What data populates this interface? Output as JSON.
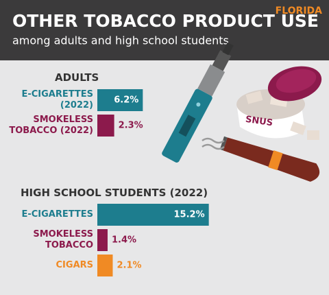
{
  "header": {
    "title": "OTHER TOBACCO PRODUCT USE",
    "subtitle": "among adults and high school students",
    "state": "FLORIDA"
  },
  "illustration": {
    "tin_label": "SNUS"
  },
  "chart_data": [
    {
      "type": "bar",
      "orientation": "horizontal",
      "title": "ADULTS",
      "categories": [
        "E-CIGARETTES (2022)",
        "SMOKELESS TOBACCO (2022)"
      ],
      "values": [
        6.2,
        2.3
      ],
      "value_labels": [
        "6.2%",
        "2.3%"
      ],
      "colors": [
        "#1d7d8e",
        "#8c1a4c"
      ]
    },
    {
      "type": "bar",
      "orientation": "horizontal",
      "title": "HIGH SCHOOL STUDENTS (2022)",
      "categories": [
        "E-CIGARETTES",
        "SMOKELESS TOBACCO",
        "CIGARS"
      ],
      "values": [
        15.2,
        1.4,
        2.1
      ],
      "value_labels": [
        "15.2%",
        "1.4%",
        "2.1%"
      ],
      "colors": [
        "#1d7d8e",
        "#8c1a4c",
        "#f08a24"
      ]
    }
  ]
}
